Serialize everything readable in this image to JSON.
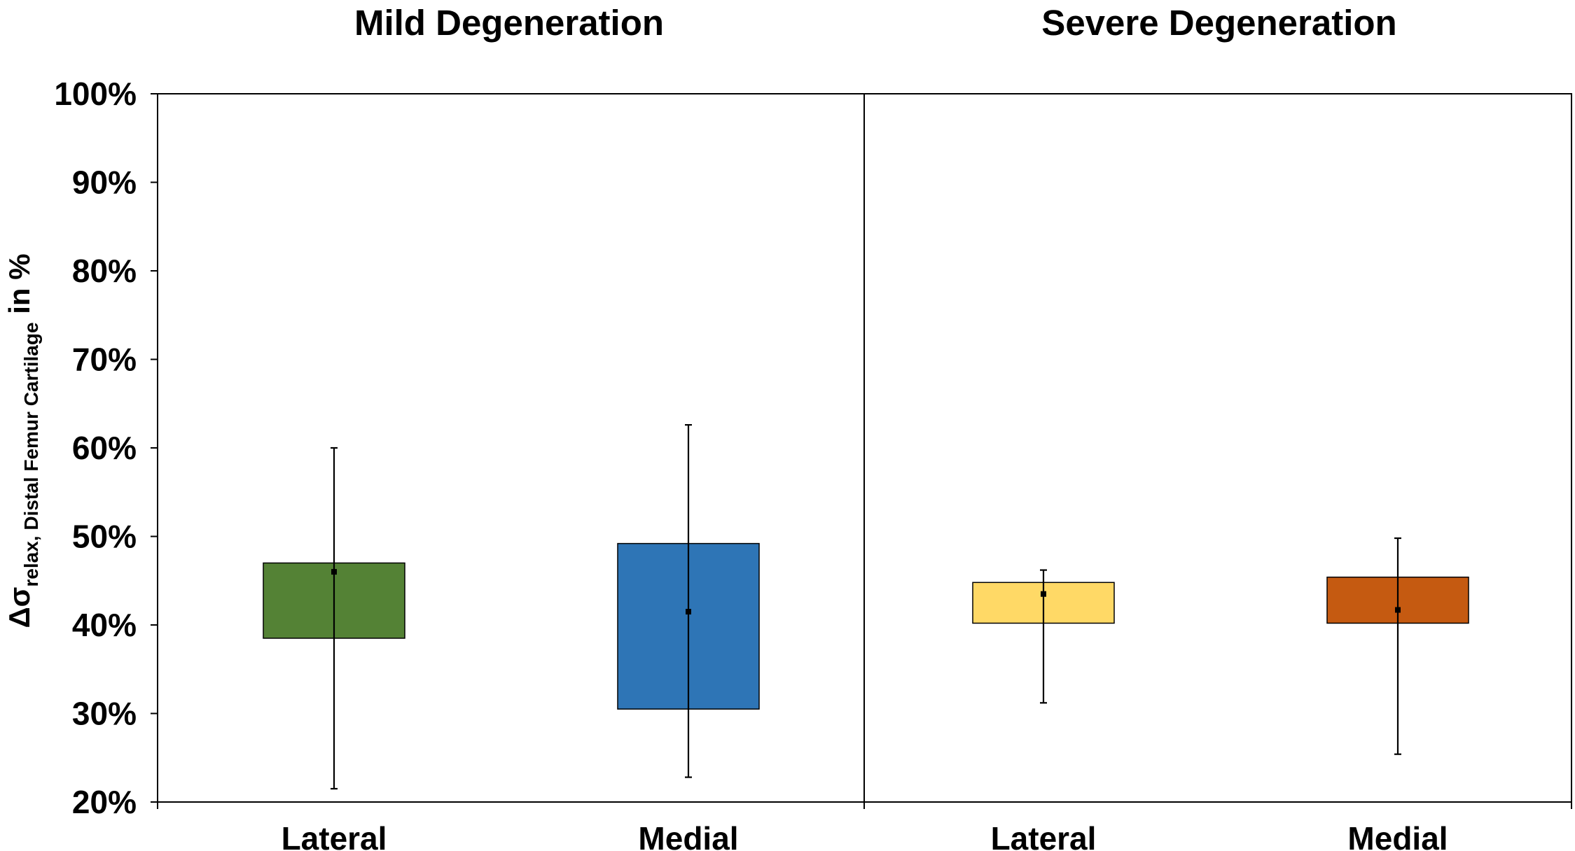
{
  "chart_data": {
    "type": "box",
    "panels": [
      {
        "title": "Mild Degeneration",
        "boxes": [
          {
            "label": "Lateral",
            "color": "#548235",
            "q1": 38.5,
            "q3": 47.0,
            "mean": 46.0,
            "whisker_low": 21.5,
            "whisker_high": 60.0
          },
          {
            "label": "Medial",
            "color": "#2E75B6",
            "q1": 30.5,
            "q3": 49.2,
            "mean": 41.5,
            "whisker_low": 22.8,
            "whisker_high": 62.6
          }
        ]
      },
      {
        "title": "Severe Degeneration",
        "boxes": [
          {
            "label": "Lateral",
            "color": "#FFD966",
            "q1": 40.2,
            "q3": 44.8,
            "mean": 43.5,
            "whisker_low": 31.2,
            "whisker_high": 46.2
          },
          {
            "label": "Medial",
            "color": "#C55A11",
            "q1": 40.2,
            "q3": 45.4,
            "mean": 41.7,
            "whisker_low": 25.4,
            "whisker_high": 49.8
          }
        ]
      }
    ],
    "ylabel": {
      "prefix": "Δσ",
      "subscript": "relax, Distal Femur Cartilage",
      "suffix": " in %"
    },
    "ylim": [
      20,
      100
    ],
    "yticks": [
      20,
      30,
      40,
      50,
      60,
      70,
      80,
      90,
      100
    ],
    "ytick_suffix": "%"
  }
}
